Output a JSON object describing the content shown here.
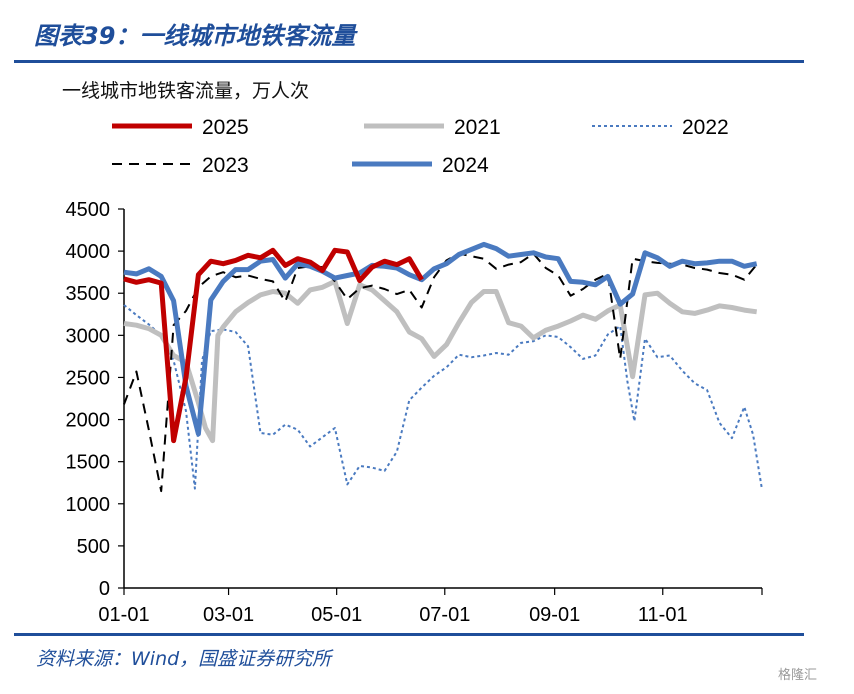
{
  "title": "图表39：一线城市地铁客流量",
  "subtitle": "一线城市地铁客流量，万人次",
  "source": "资料来源：Wind，国盛证券研究所",
  "watermark": "格隆汇",
  "chart_data": {
    "type": "line",
    "ylim": [
      0,
      4500
    ],
    "yticks": [
      0,
      500,
      1000,
      1500,
      2000,
      2500,
      3000,
      3500,
      4000,
      4500
    ],
    "xticks": [
      "01-01",
      "03-01",
      "05-01",
      "07-01",
      "09-01",
      "11-01"
    ],
    "xtick_days": [
      0,
      59,
      120,
      181,
      243,
      304
    ],
    "xlim_days": [
      0,
      360
    ],
    "x_unit": "day of year",
    "legend_rows": [
      [
        "2025",
        "2021",
        "2022"
      ],
      [
        "2023",
        "2024"
      ]
    ],
    "series": [
      {
        "name": "2025",
        "color": "#c00000",
        "dash": "solid",
        "width": 5,
        "points": [
          [
            0,
            3670
          ],
          [
            7,
            3630
          ],
          [
            14,
            3660
          ],
          [
            21,
            3620
          ],
          [
            28,
            1750
          ],
          [
            35,
            2500
          ],
          [
            42,
            3720
          ],
          [
            49,
            3880
          ],
          [
            56,
            3850
          ],
          [
            63,
            3890
          ],
          [
            70,
            3950
          ],
          [
            77,
            3920
          ],
          [
            84,
            4010
          ],
          [
            91,
            3830
          ],
          [
            98,
            3910
          ],
          [
            105,
            3870
          ],
          [
            112,
            3770
          ],
          [
            119,
            4010
          ],
          [
            126,
            3990
          ],
          [
            133,
            3650
          ],
          [
            140,
            3810
          ],
          [
            147,
            3880
          ],
          [
            154,
            3840
          ],
          [
            161,
            3910
          ],
          [
            168,
            3660
          ]
        ]
      },
      {
        "name": "2021",
        "color": "#bfbfbf",
        "dash": "solid",
        "width": 5,
        "points": [
          [
            0,
            3140
          ],
          [
            7,
            3120
          ],
          [
            14,
            3080
          ],
          [
            21,
            3000
          ],
          [
            28,
            2760
          ],
          [
            35,
            2680
          ],
          [
            42,
            2200
          ],
          [
            46,
            1900
          ],
          [
            50,
            1750
          ],
          [
            53,
            3000
          ],
          [
            56,
            3100
          ],
          [
            63,
            3280
          ],
          [
            70,
            3390
          ],
          [
            77,
            3480
          ],
          [
            84,
            3520
          ],
          [
            91,
            3500
          ],
          [
            98,
            3380
          ],
          [
            105,
            3540
          ],
          [
            112,
            3570
          ],
          [
            119,
            3640
          ],
          [
            126,
            3140
          ],
          [
            133,
            3600
          ],
          [
            140,
            3540
          ],
          [
            147,
            3410
          ],
          [
            154,
            3280
          ],
          [
            161,
            3040
          ],
          [
            168,
            2960
          ],
          [
            175,
            2750
          ],
          [
            182,
            2890
          ],
          [
            189,
            3150
          ],
          [
            196,
            3390
          ],
          [
            203,
            3520
          ],
          [
            210,
            3520
          ],
          [
            217,
            3150
          ],
          [
            224,
            3110
          ],
          [
            231,
            2970
          ],
          [
            238,
            3060
          ],
          [
            245,
            3110
          ],
          [
            252,
            3170
          ],
          [
            259,
            3240
          ],
          [
            266,
            3190
          ],
          [
            273,
            3290
          ],
          [
            280,
            3360
          ],
          [
            287,
            2510
          ],
          [
            294,
            3480
          ],
          [
            301,
            3500
          ],
          [
            308,
            3380
          ],
          [
            315,
            3280
          ],
          [
            322,
            3260
          ],
          [
            329,
            3300
          ],
          [
            336,
            3350
          ],
          [
            343,
            3330
          ],
          [
            350,
            3300
          ],
          [
            357,
            3280
          ]
        ]
      },
      {
        "name": "2022",
        "color": "#4a7ac0",
        "dash": "3,3",
        "width": 2,
        "points": [
          [
            0,
            3360
          ],
          [
            7,
            3240
          ],
          [
            14,
            3130
          ],
          [
            21,
            3000
          ],
          [
            28,
            2700
          ],
          [
            35,
            2100
          ],
          [
            40,
            1180
          ],
          [
            44,
            2700
          ],
          [
            49,
            3050
          ],
          [
            56,
            3070
          ],
          [
            63,
            3040
          ],
          [
            70,
            2870
          ],
          [
            77,
            1840
          ],
          [
            84,
            1820
          ],
          [
            91,
            1940
          ],
          [
            98,
            1880
          ],
          [
            105,
            1680
          ],
          [
            112,
            1790
          ],
          [
            119,
            1900
          ],
          [
            126,
            1230
          ],
          [
            133,
            1450
          ],
          [
            140,
            1430
          ],
          [
            147,
            1390
          ],
          [
            154,
            1620
          ],
          [
            161,
            2230
          ],
          [
            168,
            2380
          ],
          [
            175,
            2520
          ],
          [
            182,
            2620
          ],
          [
            189,
            2770
          ],
          [
            196,
            2740
          ],
          [
            203,
            2760
          ],
          [
            210,
            2790
          ],
          [
            217,
            2770
          ],
          [
            224,
            2910
          ],
          [
            231,
            2930
          ],
          [
            238,
            3000
          ],
          [
            245,
            2980
          ],
          [
            252,
            2860
          ],
          [
            259,
            2720
          ],
          [
            266,
            2760
          ],
          [
            273,
            3010
          ],
          [
            280,
            3110
          ],
          [
            284,
            2460
          ],
          [
            288,
            1980
          ],
          [
            294,
            2960
          ],
          [
            301,
            2740
          ],
          [
            308,
            2760
          ],
          [
            315,
            2580
          ],
          [
            322,
            2430
          ],
          [
            329,
            2350
          ],
          [
            336,
            1960
          ],
          [
            343,
            1780
          ],
          [
            350,
            2150
          ],
          [
            355,
            1820
          ],
          [
            360,
            1170
          ]
        ]
      },
      {
        "name": "2023",
        "color": "#000000",
        "dash": "10,7",
        "width": 2,
        "points": [
          [
            0,
            2180
          ],
          [
            7,
            2570
          ],
          [
            14,
            1880
          ],
          [
            21,
            1150
          ],
          [
            28,
            3120
          ],
          [
            35,
            3290
          ],
          [
            42,
            3570
          ],
          [
            49,
            3700
          ],
          [
            56,
            3750
          ],
          [
            63,
            3690
          ],
          [
            70,
            3710
          ],
          [
            77,
            3670
          ],
          [
            84,
            3640
          ],
          [
            91,
            3400
          ],
          [
            98,
            3800
          ],
          [
            105,
            3820
          ],
          [
            112,
            3810
          ],
          [
            119,
            3640
          ],
          [
            126,
            3430
          ],
          [
            133,
            3560
          ],
          [
            140,
            3590
          ],
          [
            147,
            3550
          ],
          [
            154,
            3490
          ],
          [
            161,
            3540
          ],
          [
            168,
            3330
          ],
          [
            175,
            3690
          ],
          [
            182,
            3890
          ],
          [
            189,
            3970
          ],
          [
            196,
            3940
          ],
          [
            203,
            3910
          ],
          [
            210,
            3790
          ],
          [
            217,
            3840
          ],
          [
            224,
            3870
          ],
          [
            231,
            3970
          ],
          [
            238,
            3800
          ],
          [
            245,
            3710
          ],
          [
            252,
            3470
          ],
          [
            259,
            3550
          ],
          [
            266,
            3660
          ],
          [
            273,
            3730
          ],
          [
            280,
            2720
          ],
          [
            287,
            3910
          ],
          [
            294,
            3880
          ],
          [
            301,
            3860
          ],
          [
            308,
            3850
          ],
          [
            315,
            3840
          ],
          [
            322,
            3800
          ],
          [
            329,
            3780
          ],
          [
            336,
            3740
          ],
          [
            343,
            3720
          ],
          [
            350,
            3660
          ],
          [
            357,
            3840
          ]
        ]
      },
      {
        "name": "2024",
        "color": "#4a7ac0",
        "dash": "solid",
        "width": 5,
        "points": [
          [
            0,
            3750
          ],
          [
            7,
            3730
          ],
          [
            14,
            3790
          ],
          [
            21,
            3700
          ],
          [
            28,
            3410
          ],
          [
            35,
            2400
          ],
          [
            42,
            1830
          ],
          [
            49,
            3420
          ],
          [
            56,
            3640
          ],
          [
            63,
            3780
          ],
          [
            70,
            3780
          ],
          [
            77,
            3880
          ],
          [
            84,
            3900
          ],
          [
            91,
            3680
          ],
          [
            98,
            3850
          ],
          [
            105,
            3820
          ],
          [
            112,
            3760
          ],
          [
            119,
            3680
          ],
          [
            126,
            3710
          ],
          [
            133,
            3740
          ],
          [
            140,
            3830
          ],
          [
            147,
            3820
          ],
          [
            154,
            3800
          ],
          [
            161,
            3720
          ],
          [
            168,
            3660
          ],
          [
            175,
            3790
          ],
          [
            182,
            3850
          ],
          [
            189,
            3960
          ],
          [
            196,
            4020
          ],
          [
            203,
            4080
          ],
          [
            210,
            4030
          ],
          [
            217,
            3940
          ],
          [
            224,
            3960
          ],
          [
            231,
            3980
          ],
          [
            238,
            3930
          ],
          [
            245,
            3910
          ],
          [
            252,
            3640
          ],
          [
            259,
            3630
          ],
          [
            266,
            3600
          ],
          [
            273,
            3700
          ],
          [
            280,
            3370
          ],
          [
            287,
            3490
          ],
          [
            294,
            3980
          ],
          [
            301,
            3920
          ],
          [
            308,
            3820
          ],
          [
            315,
            3880
          ],
          [
            322,
            3850
          ],
          [
            329,
            3860
          ],
          [
            336,
            3880
          ],
          [
            343,
            3880
          ],
          [
            350,
            3820
          ],
          [
            357,
            3850
          ]
        ]
      }
    ]
  }
}
